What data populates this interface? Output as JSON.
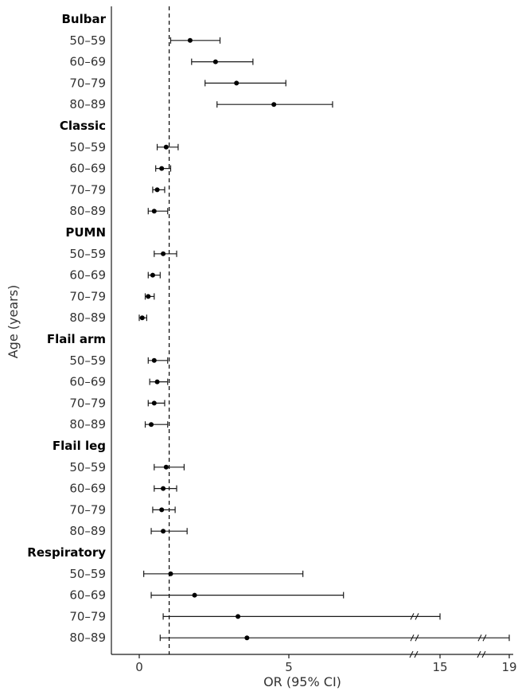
{
  "chart_data": {
    "type": "forest",
    "xlabel": "OR (95% CI)",
    "ylabel": "Age (years)",
    "reference_line": 1,
    "x_ticks": [
      {
        "label": "0",
        "value": 0
      },
      {
        "label": "5",
        "value": 5
      },
      {
        "label": "15",
        "value": 15
      },
      {
        "label": "19",
        "value": 19
      }
    ],
    "axis_breaks": true,
    "grid": false,
    "groups": [
      {
        "name": "Bulbar",
        "rows": [
          {
            "label": "50–59",
            "or": 1.7,
            "lo": 1.05,
            "hi": 2.7
          },
          {
            "label": "60–69",
            "or": 2.55,
            "lo": 1.75,
            "hi": 3.8
          },
          {
            "label": "70–79",
            "or": 3.25,
            "lo": 2.2,
            "hi": 4.9
          },
          {
            "label": "80–89",
            "or": 4.5,
            "lo": 2.6,
            "hi": 7.8
          }
        ]
      },
      {
        "name": "Classic",
        "rows": [
          {
            "label": "50–59",
            "or": 0.9,
            "lo": 0.6,
            "hi": 1.3
          },
          {
            "label": "60–69",
            "or": 0.75,
            "lo": 0.55,
            "hi": 1.05
          },
          {
            "label": "70–79",
            "or": 0.6,
            "lo": 0.45,
            "hi": 0.85
          },
          {
            "label": "80–89",
            "or": 0.5,
            "lo": 0.3,
            "hi": 0.95
          }
        ]
      },
      {
        "name": "PUMN",
        "rows": [
          {
            "label": "50–59",
            "or": 0.8,
            "lo": 0.5,
            "hi": 1.25
          },
          {
            "label": "60–69",
            "or": 0.45,
            "lo": 0.3,
            "hi": 0.7
          },
          {
            "label": "70–79",
            "or": 0.3,
            "lo": 0.2,
            "hi": 0.5
          },
          {
            "label": "80–89",
            "or": 0.1,
            "lo": 0.0,
            "hi": 0.25
          }
        ]
      },
      {
        "name": "Flail arm",
        "rows": [
          {
            "label": "50–59",
            "or": 0.5,
            "lo": 0.3,
            "hi": 0.95
          },
          {
            "label": "60–69",
            "or": 0.6,
            "lo": 0.35,
            "hi": 0.95
          },
          {
            "label": "70–79",
            "or": 0.5,
            "lo": 0.3,
            "hi": 0.85
          },
          {
            "label": "80–89",
            "or": 0.4,
            "lo": 0.2,
            "hi": 0.95
          }
        ]
      },
      {
        "name": "Flail leg",
        "rows": [
          {
            "label": "50–59",
            "or": 0.9,
            "lo": 0.5,
            "hi": 1.5
          },
          {
            "label": "60–69",
            "or": 0.8,
            "lo": 0.5,
            "hi": 1.25
          },
          {
            "label": "70–79",
            "or": 0.75,
            "lo": 0.45,
            "hi": 1.2
          },
          {
            "label": "80–89",
            "or": 0.8,
            "lo": 0.4,
            "hi": 1.6
          }
        ]
      },
      {
        "name": "Respiratory",
        "rows": [
          {
            "label": "50–59",
            "or": 1.05,
            "lo": 0.15,
            "hi": 5.9
          },
          {
            "label": "60–69",
            "or": 1.85,
            "lo": 0.4,
            "hi": 8.5
          },
          {
            "label": "70–79",
            "or": 3.3,
            "lo": 0.8,
            "hi": 15
          },
          {
            "label": "80–89",
            "or": 3.6,
            "lo": 0.7,
            "hi": 19
          }
        ]
      }
    ]
  }
}
